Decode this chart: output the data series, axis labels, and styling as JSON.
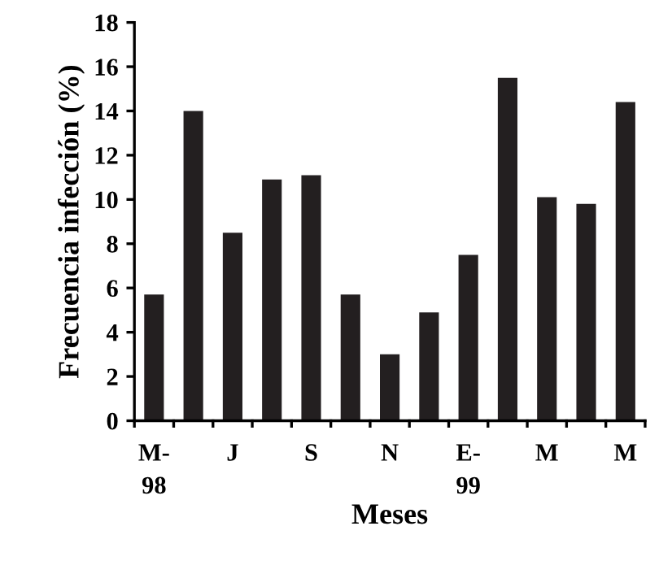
{
  "chart_data": {
    "type": "bar",
    "xlabel": "Meses",
    "ylabel": "Frecuencia infección (%)",
    "categories": [
      "M-\n98",
      null,
      "J",
      null,
      "S",
      null,
      "N",
      null,
      "E-\n99",
      null,
      "M",
      null,
      "M"
    ],
    "values": [
      5.7,
      14.0,
      8.5,
      10.9,
      11.1,
      5.7,
      3.0,
      4.9,
      7.5,
      15.5,
      10.1,
      9.8,
      14.4
    ],
    "color": "#231f20",
    "ylim": [
      0,
      18
    ],
    "yticks": [
      0,
      2,
      4,
      6,
      8,
      10,
      12,
      14,
      16,
      18
    ],
    "grid": false,
    "legend": false
  }
}
